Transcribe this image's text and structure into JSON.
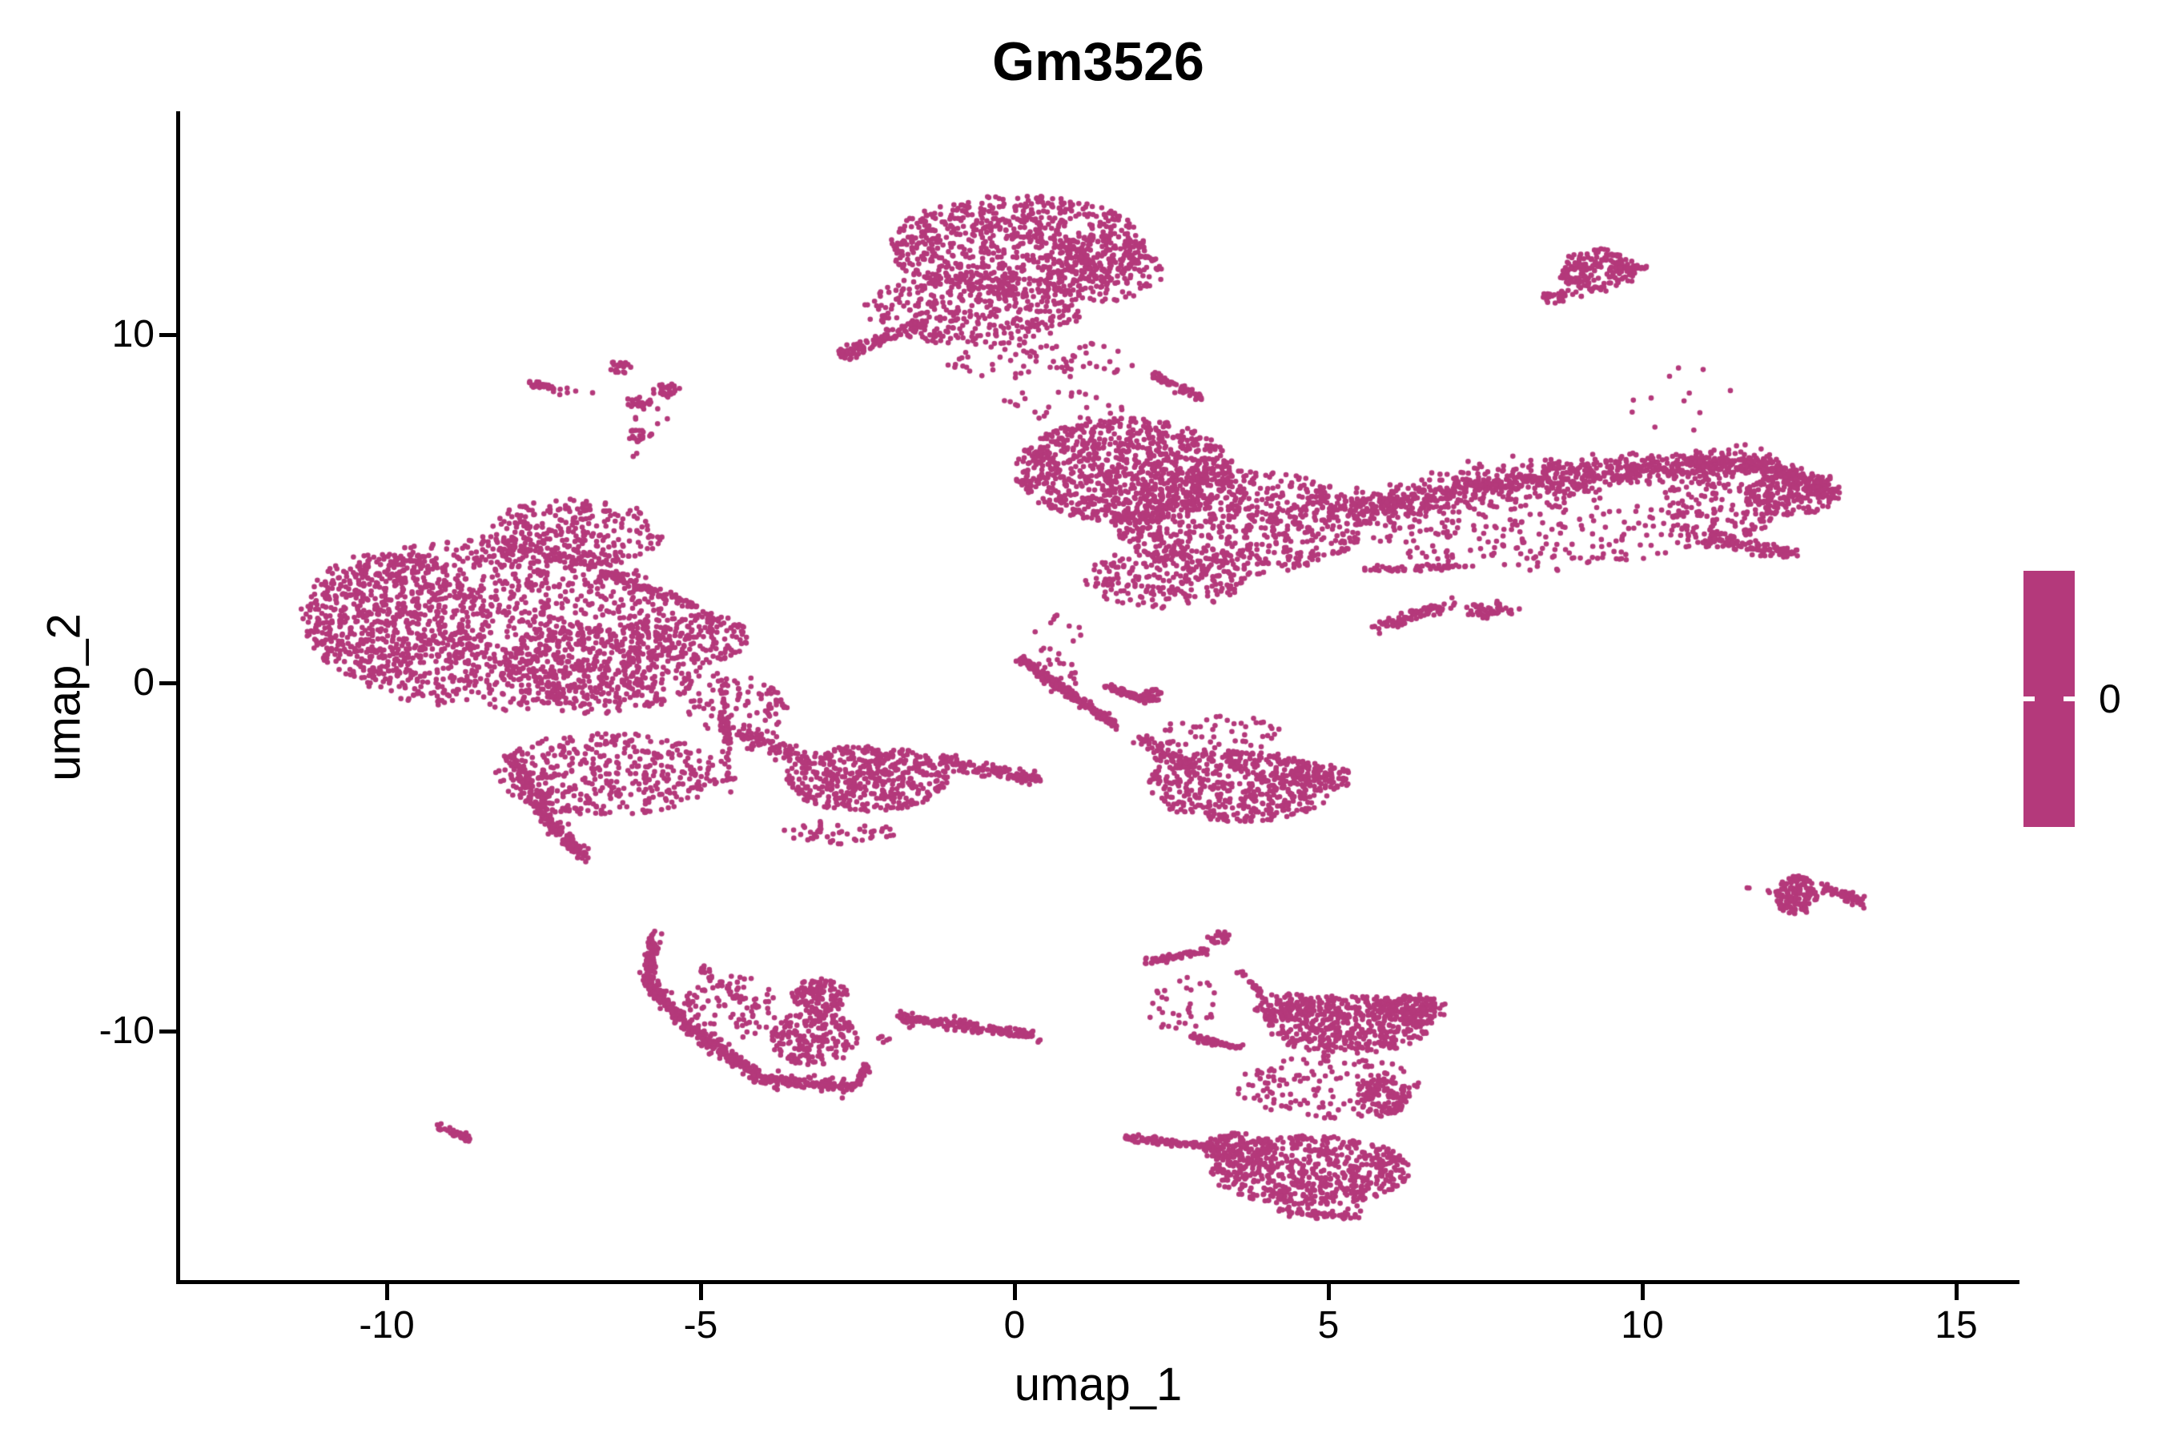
{
  "chart_data": {
    "type": "scatter",
    "title": "Gm3526",
    "xlabel": "umap_1",
    "ylabel": "umap_2",
    "xlim": [
      -13.3,
      16.0
    ],
    "ylim": [
      -17.2,
      16.4
    ],
    "xticks": [
      -10,
      -5,
      0,
      5,
      10,
      15
    ],
    "yticks": [
      -10,
      0,
      10
    ],
    "grid": false,
    "legend": {
      "label": "0",
      "position": "right"
    },
    "colors": {
      "point": "#B4397B",
      "colorbar": "#B4397B",
      "axis": "#000000",
      "text": "#000000",
      "background": "#FFFFFF",
      "legend_tick": "#FFFFFF"
    },
    "point_radius_px": 3.3,
    "seed": 42,
    "clusters": [
      {
        "t": "b",
        "x": 0.05,
        "y": 12.55,
        "rx": 2.05,
        "ry": 1.45,
        "n": 780
      },
      {
        "t": "b",
        "x": -0.65,
        "y": 10.75,
        "rx": 1.75,
        "ry": 1.05,
        "n": 380
      },
      {
        "t": "b",
        "x": 1.4,
        "y": 11.9,
        "rx": 1.0,
        "ry": 0.95,
        "n": 200
      },
      {
        "t": "s",
        "x1": -2.55,
        "y1": 9.55,
        "x2": -1.45,
        "y2": 10.35,
        "w": 0.18,
        "n": 70
      },
      {
        "t": "b",
        "x": -2.6,
        "y": 9.5,
        "rx": 0.22,
        "ry": 0.22,
        "n": 28
      },
      {
        "t": "s",
        "x1": 2.2,
        "y1": 8.85,
        "x2": 3.0,
        "y2": 8.15,
        "w": 0.12,
        "n": 55
      },
      {
        "t": "b",
        "x": 0.4,
        "y": 9.3,
        "rx": 1.6,
        "ry": 0.6,
        "n": 70
      },
      {
        "t": "b",
        "x": 0.8,
        "y": 8.0,
        "rx": 1.0,
        "ry": 0.55,
        "n": 24
      },
      {
        "t": "b",
        "x": 9.3,
        "y": 11.85,
        "rx": 0.62,
        "ry": 0.62,
        "n": 150
      },
      {
        "t": "s",
        "x1": 9.55,
        "y1": 11.95,
        "x2": 10.05,
        "y2": 11.9,
        "w": 0.08,
        "n": 30
      },
      {
        "t": "b",
        "x": 8.6,
        "y": 11.1,
        "rx": 0.18,
        "ry": 0.22,
        "n": 25
      },
      {
        "t": "b",
        "x": 8.95,
        "y": 11.4,
        "rx": 0.38,
        "ry": 0.32,
        "n": 16
      },
      {
        "t": "b",
        "x": 10.6,
        "y": 8.2,
        "rx": 0.9,
        "ry": 1.1,
        "n": 12
      },
      {
        "t": "b",
        "x": 1.75,
        "y": 6.1,
        "rx": 1.75,
        "ry": 1.5,
        "n": 950
      },
      {
        "t": "b",
        "x": 3.6,
        "y": 4.6,
        "rx": 2.0,
        "ry": 1.5,
        "n": 750
      },
      {
        "t": "b",
        "x": 2.4,
        "y": 3.0,
        "rx": 1.3,
        "ry": 0.85,
        "n": 220
      },
      {
        "t": "s",
        "x1": 5.3,
        "y1": 4.9,
        "x2": 7.6,
        "y2": 5.7,
        "w": 0.5,
        "n": 330
      },
      {
        "t": "s",
        "x1": 7.6,
        "y1": 5.7,
        "x2": 9.8,
        "y2": 6.1,
        "w": 0.45,
        "n": 330
      },
      {
        "t": "s",
        "x1": 9.8,
        "y1": 6.1,
        "x2": 11.6,
        "y2": 6.35,
        "w": 0.4,
        "n": 260
      },
      {
        "t": "s",
        "x1": 11.6,
        "y1": 6.35,
        "x2": 13.0,
        "y2": 5.55,
        "w": 0.35,
        "n": 220
      },
      {
        "t": "b",
        "x": 8.3,
        "y": 4.3,
        "rx": 2.6,
        "ry": 1.1,
        "n": 230
      },
      {
        "t": "b",
        "x": 11.2,
        "y": 5.0,
        "rx": 1.0,
        "ry": 0.9,
        "n": 150
      },
      {
        "t": "b",
        "x": 12.4,
        "y": 5.4,
        "rx": 0.75,
        "ry": 0.6,
        "n": 160
      },
      {
        "t": "s",
        "x1": 10.9,
        "y1": 4.15,
        "x2": 12.45,
        "y2": 3.7,
        "w": 0.18,
        "n": 110
      },
      {
        "t": "s",
        "x1": 5.55,
        "y1": 3.25,
        "x2": 7.2,
        "y2": 3.35,
        "w": 0.1,
        "n": 55
      },
      {
        "t": "s",
        "x1": 5.75,
        "y1": 1.55,
        "x2": 6.95,
        "y2": 2.3,
        "w": 0.15,
        "n": 80
      },
      {
        "t": "b",
        "x": 7.6,
        "y": 2.1,
        "rx": 0.45,
        "ry": 0.25,
        "n": 45
      },
      {
        "t": "b",
        "x": 0.7,
        "y": 1.4,
        "rx": 0.5,
        "ry": 0.6,
        "n": 14
      },
      {
        "t": "b",
        "x": -8.3,
        "y": 1.7,
        "rx": 2.9,
        "ry": 2.5,
        "n": 1250
      },
      {
        "t": "b",
        "x": -9.9,
        "y": 1.9,
        "rx": 1.5,
        "ry": 1.9,
        "n": 420
      },
      {
        "t": "b",
        "x": -7.0,
        "y": 4.3,
        "rx": 1.4,
        "ry": 1.0,
        "n": 300
      },
      {
        "t": "b",
        "x": -6.6,
        "y": 0.4,
        "rx": 1.6,
        "ry": 1.3,
        "n": 420
      },
      {
        "t": "b",
        "x": -6.5,
        "y": -2.6,
        "rx": 1.8,
        "ry": 1.2,
        "n": 420
      },
      {
        "t": "s",
        "x1": -8.0,
        "y1": -2.2,
        "x2": -7.3,
        "y2": -4.2,
        "w": 0.25,
        "n": 120
      },
      {
        "t": "s",
        "x1": -7.35,
        "y1": -4.1,
        "x2": -6.85,
        "y2": -5.0,
        "w": 0.18,
        "n": 70
      },
      {
        "t": "s",
        "x1": -6.6,
        "y1": 3.15,
        "x2": -5.1,
        "y2": 2.2,
        "w": 0.12,
        "n": 90
      },
      {
        "t": "b",
        "x": -5.0,
        "y": 1.3,
        "rx": 0.75,
        "ry": 0.75,
        "n": 160
      },
      {
        "t": "s",
        "x1": -4.65,
        "y1": 0.3,
        "x2": -4.55,
        "y2": -2.9,
        "w": 0.15,
        "n": 70
      },
      {
        "t": "b",
        "x": -4.4,
        "y": -0.7,
        "rx": 0.8,
        "ry": 0.9,
        "n": 90
      },
      {
        "t": "b",
        "x": -2.35,
        "y": -2.75,
        "rx": 1.3,
        "ry": 0.95,
        "n": 480
      },
      {
        "t": "s",
        "x1": -1.15,
        "y1": -2.3,
        "x2": 0.35,
        "y2": -2.75,
        "w": 0.18,
        "n": 130
      },
      {
        "t": "s",
        "x1": -4.4,
        "y1": -1.3,
        "x2": -3.4,
        "y2": -2.2,
        "w": 0.3,
        "n": 80
      },
      {
        "t": "b",
        "x": -2.8,
        "y": -4.3,
        "rx": 0.9,
        "ry": 0.35,
        "n": 50
      },
      {
        "t": "s",
        "x1": 0.12,
        "y1": 0.68,
        "x2": 1.62,
        "y2": -1.25,
        "w": 0.13,
        "n": 240
      },
      {
        "t": "s",
        "x1": 1.45,
        "y1": -0.1,
        "x2": 2.1,
        "y2": -0.5,
        "w": 0.1,
        "n": 80
      },
      {
        "t": "b",
        "x": 2.2,
        "y": -0.35,
        "rx": 0.15,
        "ry": 0.2,
        "n": 30
      },
      {
        "t": "b",
        "x": 0.55,
        "y": 0.2,
        "rx": 0.5,
        "ry": 0.5,
        "n": 22
      },
      {
        "t": "b",
        "x": 3.6,
        "y": -2.95,
        "rx": 1.5,
        "ry": 1.05,
        "n": 520
      },
      {
        "t": "s",
        "x1": 2.0,
        "y1": -1.6,
        "x2": 2.8,
        "y2": -2.4,
        "w": 0.25,
        "n": 70
      },
      {
        "t": "b",
        "x": 4.9,
        "y": -2.7,
        "rx": 0.5,
        "ry": 0.4,
        "n": 70
      },
      {
        "t": "b",
        "x": 3.3,
        "y": -1.5,
        "rx": 1.0,
        "ry": 0.6,
        "n": 55
      },
      {
        "t": "s",
        "x1": -5.75,
        "y1": -7.3,
        "x2": -5.85,
        "y2": -8.6,
        "w": 0.16,
        "n": 130
      },
      {
        "t": "s",
        "x1": -5.85,
        "y1": -8.6,
        "x2": -5.2,
        "y2": -9.9,
        "w": 0.18,
        "n": 130
      },
      {
        "t": "s",
        "x1": -5.2,
        "y1": -9.9,
        "x2": -4.0,
        "y2": -11.4,
        "w": 0.2,
        "n": 160
      },
      {
        "t": "s",
        "x1": -4.0,
        "y1": -11.4,
        "x2": -2.55,
        "y2": -11.6,
        "w": 0.18,
        "n": 140
      },
      {
        "t": "s",
        "x1": -2.55,
        "y1": -11.6,
        "x2": -2.35,
        "y2": -11.0,
        "w": 0.12,
        "n": 40
      },
      {
        "t": "b",
        "x": -3.1,
        "y": -9.0,
        "rx": 0.45,
        "ry": 0.5,
        "n": 120
      },
      {
        "t": "b",
        "x": -3.2,
        "y": -10.2,
        "rx": 0.7,
        "ry": 0.8,
        "n": 200
      },
      {
        "t": "b",
        "x": -4.5,
        "y": -9.3,
        "rx": 0.8,
        "ry": 0.9,
        "n": 90
      },
      {
        "t": "s",
        "x1": -5.0,
        "y1": -8.2,
        "x2": -4.35,
        "y2": -9.15,
        "w": 0.12,
        "n": 28
      },
      {
        "t": "b",
        "x": -2.1,
        "y": -10.25,
        "rx": 0.12,
        "ry": 0.12,
        "n": 6
      },
      {
        "t": "s",
        "x1": -1.85,
        "y1": -9.6,
        "x2": 0.35,
        "y2": -10.15,
        "w": 0.16,
        "n": 190
      },
      {
        "t": "s",
        "x1": 2.1,
        "y1": -8.0,
        "x2": 3.05,
        "y2": -7.7,
        "w": 0.1,
        "n": 70
      },
      {
        "t": "b",
        "x": 3.25,
        "y": -7.3,
        "rx": 0.18,
        "ry": 0.18,
        "n": 25
      },
      {
        "t": "s",
        "x1": 3.6,
        "y1": -8.3,
        "x2": 3.95,
        "y2": -8.95,
        "w": 0.1,
        "n": 22
      },
      {
        "t": "s",
        "x1": 2.8,
        "y1": -10.15,
        "x2": 3.62,
        "y2": -10.5,
        "w": 0.1,
        "n": 60
      },
      {
        "t": "b",
        "x": 5.3,
        "y": -9.8,
        "rx": 1.35,
        "ry": 0.85,
        "n": 480
      },
      {
        "t": "b",
        "x": 6.4,
        "y": -9.4,
        "rx": 0.5,
        "ry": 0.45,
        "n": 110
      },
      {
        "t": "b",
        "x": 4.3,
        "y": -9.3,
        "rx": 0.5,
        "ry": 0.4,
        "n": 80
      },
      {
        "t": "b",
        "x": 5.0,
        "y": -11.6,
        "rx": 1.5,
        "ry": 0.9,
        "n": 150
      },
      {
        "t": "b",
        "x": 5.85,
        "y": -11.9,
        "rx": 0.4,
        "ry": 0.55,
        "n": 110
      },
      {
        "t": "s",
        "x1": 1.75,
        "y1": -13.05,
        "x2": 3.3,
        "y2": -13.35,
        "w": 0.1,
        "n": 110
      },
      {
        "t": "b",
        "x": 4.7,
        "y": -14.0,
        "rx": 1.6,
        "ry": 1.0,
        "n": 620
      },
      {
        "t": "b",
        "x": 3.6,
        "y": -13.4,
        "rx": 0.6,
        "ry": 0.5,
        "n": 120
      },
      {
        "t": "s",
        "x1": 4.2,
        "y1": -15.1,
        "x2": 5.5,
        "y2": -15.3,
        "w": 0.2,
        "n": 60
      },
      {
        "t": "b",
        "x": 2.6,
        "y": -9.2,
        "rx": 0.7,
        "ry": 0.8,
        "n": 35
      },
      {
        "t": "b",
        "x": 12.45,
        "y": -6.1,
        "rx": 0.34,
        "ry": 0.56,
        "n": 150
      },
      {
        "t": "s",
        "x1": 12.85,
        "y1": -5.85,
        "x2": 13.6,
        "y2": -6.35,
        "w": 0.14,
        "n": 60
      },
      {
        "t": "b",
        "x": 11.7,
        "y": -5.9,
        "rx": 0.06,
        "ry": 0.06,
        "n": 2
      },
      {
        "t": "b",
        "x": 12.0,
        "y": -6.0,
        "rx": 0.06,
        "ry": 0.06,
        "n": 2
      },
      {
        "t": "s",
        "x1": -9.2,
        "y1": -12.75,
        "x2": -8.65,
        "y2": -13.1,
        "w": 0.1,
        "n": 40
      },
      {
        "t": "s",
        "x1": -7.75,
        "y1": 8.65,
        "x2": -7.35,
        "y2": 8.45,
        "w": 0.09,
        "n": 30
      },
      {
        "t": "b",
        "x": -7.05,
        "y": 8.35,
        "rx": 0.35,
        "ry": 0.12,
        "n": 6
      },
      {
        "t": "b",
        "x": -6.3,
        "y": 9.05,
        "rx": 0.2,
        "ry": 0.18,
        "n": 22
      },
      {
        "t": "b",
        "x": -5.55,
        "y": 8.4,
        "rx": 0.22,
        "ry": 0.22,
        "n": 26
      },
      {
        "t": "b",
        "x": -6.0,
        "y": 8.05,
        "rx": 0.25,
        "ry": 0.15,
        "n": 20
      },
      {
        "t": "b",
        "x": -5.95,
        "y": 7.1,
        "rx": 0.2,
        "ry": 0.22,
        "n": 22
      },
      {
        "t": "b",
        "x": -5.8,
        "y": 7.7,
        "rx": 0.3,
        "ry": 0.3,
        "n": 8
      },
      {
        "t": "b",
        "x": -6.05,
        "y": 6.55,
        "rx": 0.06,
        "ry": 0.06,
        "n": 2
      }
    ]
  }
}
